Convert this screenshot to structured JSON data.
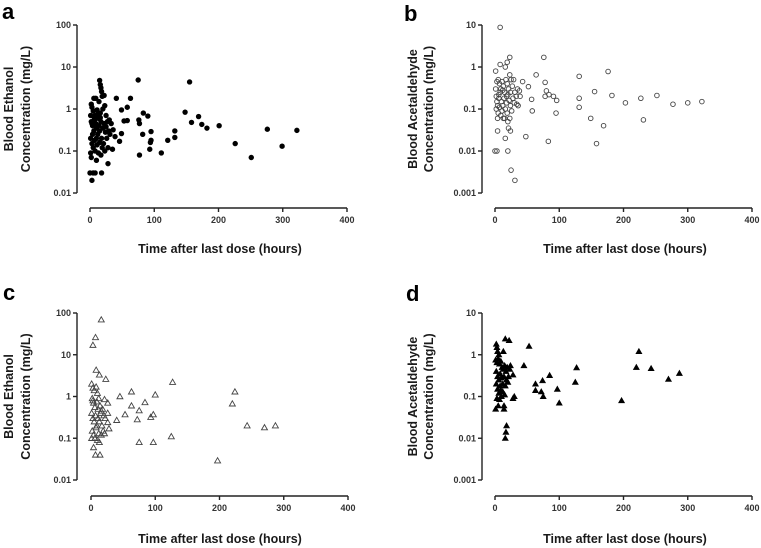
{
  "chart_data": [
    {
      "panel": "a",
      "type": "scatter",
      "marker": "filled-circle",
      "xlabel": "Time after last dose (hours)",
      "ylabel": [
        "Blood Ethanol",
        "Concentration (mg/L)"
      ],
      "xlim": [
        0,
        400
      ],
      "ylim": [
        0.01,
        100
      ],
      "yscale": "log",
      "xticks": [
        "0",
        "100",
        "200",
        "300",
        "400"
      ],
      "yticks": [
        "0.01",
        "0.1",
        "1",
        "10",
        "100"
      ],
      "points": [
        [
          75,
          4.9
        ],
        [
          155,
          4.4
        ],
        [
          41,
          1.8
        ],
        [
          63,
          1.8
        ],
        [
          49,
          0.95
        ],
        [
          58,
          1.1
        ],
        [
          53,
          0.52
        ],
        [
          58,
          0.53
        ],
        [
          76,
          0.55
        ],
        [
          77,
          0.45
        ],
        [
          83,
          0.8
        ],
        [
          90,
          0.68
        ],
        [
          82,
          0.25
        ],
        [
          95,
          0.29
        ],
        [
          95,
          0.18
        ],
        [
          94,
          0.16
        ],
        [
          93,
          0.11
        ],
        [
          77,
          0.08
        ],
        [
          111,
          0.09
        ],
        [
          121,
          0.18
        ],
        [
          132,
          0.3
        ],
        [
          132,
          0.21
        ],
        [
          148,
          0.84
        ],
        [
          158,
          0.48
        ],
        [
          169,
          0.66
        ],
        [
          174,
          0.43
        ],
        [
          182,
          0.35
        ],
        [
          201,
          0.4
        ],
        [
          226,
          0.15
        ],
        [
          251,
          0.07
        ],
        [
          276,
          0.33
        ],
        [
          299,
          0.13
        ],
        [
          322,
          0.31
        ],
        [
          46,
          0.17
        ],
        [
          49,
          0.26
        ],
        [
          39,
          0.22
        ],
        [
          35,
          0.11
        ],
        [
          28,
          0.05
        ],
        [
          18,
          0.03
        ],
        [
          10,
          0.06
        ],
        [
          3,
          0.02
        ],
        [
          0,
          0.03
        ],
        [
          5,
          0.03
        ],
        [
          8,
          0.03
        ],
        [
          15,
          4.8
        ],
        [
          16,
          3.8
        ],
        [
          17,
          3.2
        ],
        [
          18,
          2.6
        ],
        [
          19,
          2.0
        ],
        [
          22,
          2.1
        ],
        [
          14,
          1.5
        ],
        [
          6,
          1.8
        ],
        [
          9,
          1.8
        ],
        [
          2,
          1.3
        ],
        [
          3,
          1.1
        ],
        [
          5,
          0.9
        ],
        [
          8,
          0.7
        ],
        [
          11,
          0.95
        ],
        [
          13,
          0.6
        ],
        [
          16,
          0.8
        ],
        [
          20,
          1.0
        ],
        [
          23,
          1.2
        ],
        [
          25,
          0.7
        ],
        [
          27,
          0.5
        ],
        [
          30,
          0.55
        ],
        [
          33,
          0.45
        ],
        [
          36,
          0.32
        ],
        [
          1,
          0.7
        ],
        [
          2,
          0.5
        ],
        [
          4,
          0.4
        ],
        [
          6,
          0.3
        ],
        [
          7,
          0.55
        ],
        [
          9,
          0.45
        ],
        [
          10,
          0.35
        ],
        [
          12,
          0.25
        ],
        [
          14,
          0.4
        ],
        [
          15,
          0.3
        ],
        [
          17,
          0.5
        ],
        [
          18,
          0.2
        ],
        [
          20,
          0.35
        ],
        [
          21,
          0.15
        ],
        [
          22,
          0.45
        ],
        [
          24,
          0.28
        ],
        [
          26,
          0.2
        ],
        [
          28,
          0.12
        ],
        [
          31,
          0.25
        ],
        [
          1,
          0.2
        ],
        [
          3,
          0.15
        ],
        [
          4,
          0.25
        ],
        [
          5,
          0.12
        ],
        [
          7,
          0.18
        ],
        [
          8,
          0.1
        ],
        [
          11,
          0.14
        ],
        [
          13,
          0.09
        ],
        [
          15,
          0.16
        ],
        [
          17,
          0.08
        ],
        [
          19,
          0.12
        ],
        [
          23,
          0.1
        ],
        [
          2,
          0.07
        ],
        [
          1,
          0.09
        ],
        [
          3,
          0.45
        ],
        [
          12,
          0.75
        ],
        [
          16,
          0.62
        ],
        [
          6,
          0.65
        ],
        [
          10,
          0.2
        ],
        [
          25,
          0.38
        ],
        [
          29,
          0.3
        ]
      ]
    },
    {
      "panel": "b",
      "type": "scatter",
      "marker": "open-circle",
      "xlabel": "Time after last dose (hours)",
      "ylabel": [
        "Blood Acetaldehyde",
        "Concentration (mg/L)"
      ],
      "xlim": [
        0,
        400
      ],
      "ylim": [
        0.001,
        10
      ],
      "yscale": "log",
      "xticks": [
        "0",
        "100",
        "200",
        "300",
        "400"
      ],
      "yticks": [
        "0.001",
        "0.01",
        "0.1",
        "1",
        "10"
      ],
      "points": [
        [
          8,
          8.8
        ],
        [
          8,
          1.15
        ],
        [
          19,
          1.3
        ],
        [
          23,
          1.7
        ],
        [
          16,
          1.0
        ],
        [
          76,
          1.7
        ],
        [
          64,
          0.65
        ],
        [
          78,
          0.43
        ],
        [
          52,
          0.34
        ],
        [
          57,
          0.17
        ],
        [
          58,
          0.09
        ],
        [
          95,
          0.08
        ],
        [
          80,
          0.27
        ],
        [
          78,
          0.2
        ],
        [
          91,
          0.2
        ],
        [
          96,
          0.16
        ],
        [
          84,
          0.22
        ],
        [
          131,
          0.6
        ],
        [
          131,
          0.18
        ],
        [
          131,
          0.11
        ],
        [
          155,
          0.26
        ],
        [
          149,
          0.06
        ],
        [
          169,
          0.04
        ],
        [
          158,
          0.015
        ],
        [
          176,
          0.78
        ],
        [
          182,
          0.21
        ],
        [
          203,
          0.14
        ],
        [
          227,
          0.18
        ],
        [
          231,
          0.055
        ],
        [
          252,
          0.21
        ],
        [
          277,
          0.13
        ],
        [
          300,
          0.14
        ],
        [
          322,
          0.15
        ],
        [
          48,
          0.022
        ],
        [
          83,
          0.017
        ],
        [
          25,
          0.0035
        ],
        [
          31,
          0.002
        ],
        [
          20,
          0.01
        ],
        [
          3,
          0.01
        ],
        [
          0,
          0.01
        ],
        [
          4,
          0.03
        ],
        [
          16,
          0.02
        ],
        [
          21,
          0.035
        ],
        [
          24,
          0.03
        ],
        [
          13,
          0.06
        ],
        [
          4,
          0.06
        ],
        [
          43,
          0.45
        ],
        [
          38,
          0.27
        ],
        [
          36,
          0.12
        ],
        [
          1,
          0.8
        ],
        [
          3,
          0.45
        ],
        [
          5,
          0.5
        ],
        [
          7,
          0.4
        ],
        [
          9,
          0.3
        ],
        [
          11,
          0.45
        ],
        [
          13,
          0.35
        ],
        [
          15,
          0.25
        ],
        [
          17,
          0.5
        ],
        [
          19,
          0.4
        ],
        [
          21,
          0.3
        ],
        [
          23,
          0.65
        ],
        [
          25,
          0.5
        ],
        [
          27,
          0.35
        ],
        [
          29,
          0.5
        ],
        [
          31,
          0.25
        ],
        [
          33,
          0.2
        ],
        [
          1,
          0.3
        ],
        [
          2,
          0.2
        ],
        [
          3,
          0.15
        ],
        [
          4,
          0.12
        ],
        [
          6,
          0.18
        ],
        [
          8,
          0.25
        ],
        [
          10,
          0.15
        ],
        [
          12,
          0.12
        ],
        [
          14,
          0.18
        ],
        [
          16,
          0.1
        ],
        [
          18,
          0.14
        ],
        [
          20,
          0.22
        ],
        [
          22,
          0.16
        ],
        [
          24,
          0.12
        ],
        [
          26,
          0.09
        ],
        [
          28,
          0.18
        ],
        [
          30,
          0.14
        ],
        [
          34,
          0.13
        ],
        [
          2,
          0.1
        ],
        [
          5,
          0.08
        ],
        [
          7,
          0.11
        ],
        [
          9,
          0.07
        ],
        [
          11,
          0.09
        ],
        [
          15,
          0.06
        ],
        [
          19,
          0.08
        ],
        [
          23,
          0.06
        ],
        [
          20,
          0.05
        ],
        [
          6,
          0.22
        ],
        [
          12,
          0.28
        ],
        [
          18,
          0.2
        ],
        [
          24,
          0.25
        ],
        [
          35,
          0.3
        ],
        [
          39,
          0.2
        ]
      ]
    },
    {
      "panel": "c",
      "type": "scatter",
      "marker": "open-triangle",
      "xlabel": "Time after last dose (hours)",
      "ylabel": [
        "Blood Ethanol",
        "Concentration (mg/L)"
      ],
      "xlim": [
        0,
        400
      ],
      "ylim": [
        0.01,
        100
      ],
      "yscale": "log",
      "xticks": [
        "0",
        "100",
        "200",
        "300",
        "400"
      ],
      "yticks": [
        "0.01",
        "0.1",
        "1",
        "10",
        "100"
      ],
      "points": [
        [
          16,
          69
        ],
        [
          7,
          26
        ],
        [
          3,
          17
        ],
        [
          8,
          4.3
        ],
        [
          13,
          3.3
        ],
        [
          23,
          2.6
        ],
        [
          127,
          2.2
        ],
        [
          224,
          1.3
        ],
        [
          220,
          0.67
        ],
        [
          243,
          0.2
        ],
        [
          270,
          0.18
        ],
        [
          287,
          0.2
        ],
        [
          197,
          0.029
        ],
        [
          125,
          0.11
        ],
        [
          97,
          0.08
        ],
        [
          75,
          0.08
        ],
        [
          100,
          1.1
        ],
        [
          84,
          0.72
        ],
        [
          63,
          0.6
        ],
        [
          63,
          1.3
        ],
        [
          75,
          0.46
        ],
        [
          97,
          0.37
        ],
        [
          93,
          0.32
        ],
        [
          72,
          0.28
        ],
        [
          53,
          0.37
        ],
        [
          45,
          1.0
        ],
        [
          40,
          0.27
        ],
        [
          28,
          0.17
        ],
        [
          26,
          0.24
        ],
        [
          26,
          0.4
        ],
        [
          26,
          0.7
        ],
        [
          21,
          0.85
        ],
        [
          7,
          0.04
        ],
        [
          14,
          0.04
        ],
        [
          4,
          0.06
        ],
        [
          13,
          0.08
        ],
        [
          1,
          2.0
        ],
        [
          3,
          1.6
        ],
        [
          5,
          1.4
        ],
        [
          8,
          1.7
        ],
        [
          10,
          1.2
        ],
        [
          12,
          0.9
        ],
        [
          2,
          0.9
        ],
        [
          4,
          0.7
        ],
        [
          6,
          0.55
        ],
        [
          9,
          0.75
        ],
        [
          14,
          0.6
        ],
        [
          16,
          0.45
        ],
        [
          18,
          0.5
        ],
        [
          20,
          0.35
        ],
        [
          1,
          0.4
        ],
        [
          3,
          0.3
        ],
        [
          5,
          0.25
        ],
        [
          7,
          0.35
        ],
        [
          9,
          0.2
        ],
        [
          11,
          0.3
        ],
        [
          13,
          0.25
        ],
        [
          15,
          0.4
        ],
        [
          17,
          0.2
        ],
        [
          19,
          0.15
        ],
        [
          22,
          0.3
        ],
        [
          2,
          0.15
        ],
        [
          4,
          0.12
        ],
        [
          6,
          0.1
        ],
        [
          8,
          0.18
        ],
        [
          10,
          0.09
        ],
        [
          12,
          0.13
        ],
        [
          16,
          0.12
        ],
        [
          21,
          0.13
        ],
        [
          1,
          0.1
        ],
        [
          3,
          0.8
        ],
        [
          11,
          0.5
        ]
      ]
    },
    {
      "panel": "d",
      "type": "scatter",
      "marker": "filled-triangle",
      "xlabel": "Time after last dose (hours)",
      "ylabel": [
        "Blood Acetaldehyde",
        "Concentration (mg/L)"
      ],
      "xlim": [
        0,
        400
      ],
      "ylim": [
        0.001,
        10
      ],
      "yscale": "log",
      "xticks": [
        "0",
        "100",
        "200",
        "300",
        "400"
      ],
      "yticks": [
        "0.001",
        "0.01",
        "0.1",
        "1",
        "10"
      ],
      "points": [
        [
          16,
          2.4
        ],
        [
          22,
          2.2
        ],
        [
          53,
          1.6
        ],
        [
          45,
          0.55
        ],
        [
          13,
          1.2
        ],
        [
          24,
          0.55
        ],
        [
          28,
          0.33
        ],
        [
          30,
          0.1
        ],
        [
          28,
          0.09
        ],
        [
          63,
          0.2
        ],
        [
          63,
          0.14
        ],
        [
          74,
          0.24
        ],
        [
          72,
          0.13
        ],
        [
          75,
          0.1
        ],
        [
          85,
          0.32
        ],
        [
          97,
          0.15
        ],
        [
          100,
          0.07
        ],
        [
          125,
          0.22
        ],
        [
          127,
          0.49
        ],
        [
          197,
          0.08
        ],
        [
          220,
          0.5
        ],
        [
          224,
          1.2
        ],
        [
          243,
          0.47
        ],
        [
          270,
          0.26
        ],
        [
          287,
          0.36
        ],
        [
          18,
          0.02
        ],
        [
          17,
          0.014
        ],
        [
          16,
          0.01
        ],
        [
          14,
          0.06
        ],
        [
          14,
          0.05
        ],
        [
          1,
          0.05
        ],
        [
          5,
          0.06
        ],
        [
          2,
          1.8
        ],
        [
          3,
          1.5
        ],
        [
          4,
          1.2
        ],
        [
          6,
          1.0
        ],
        [
          1,
          0.75
        ],
        [
          3,
          0.65
        ],
        [
          5,
          0.8
        ],
        [
          7,
          0.6
        ],
        [
          9,
          0.7
        ],
        [
          11,
          0.5
        ],
        [
          13,
          0.45
        ],
        [
          15,
          0.55
        ],
        [
          17,
          0.4
        ],
        [
          19,
          0.5
        ],
        [
          21,
          0.3
        ],
        [
          23,
          0.45
        ],
        [
          2,
          0.4
        ],
        [
          4,
          0.3
        ],
        [
          6,
          0.25
        ],
        [
          8,
          0.35
        ],
        [
          10,
          0.28
        ],
        [
          12,
          0.2
        ],
        [
          14,
          0.3
        ],
        [
          16,
          0.18
        ],
        [
          18,
          0.25
        ],
        [
          20,
          0.22
        ],
        [
          2,
          0.2
        ],
        [
          4,
          0.15
        ],
        [
          6,
          0.12
        ],
        [
          8,
          0.18
        ],
        [
          10,
          0.1
        ],
        [
          12,
          0.13
        ],
        [
          15,
          0.11
        ],
        [
          3,
          0.09
        ],
        [
          7,
          0.085
        ],
        [
          9,
          0.14
        ]
      ]
    }
  ]
}
